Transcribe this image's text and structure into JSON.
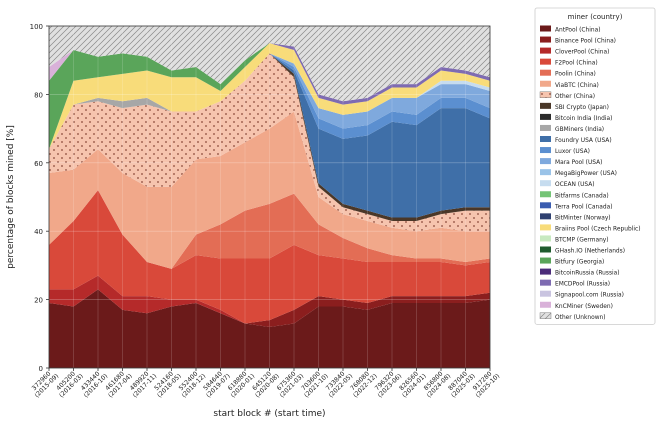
{
  "chart_data": {
    "type": "area",
    "stacking": "percent",
    "title": "",
    "xlabel": "start block # (start time)",
    "ylabel": "percentage of blocks mined [%]",
    "ylim": [
      0,
      100
    ],
    "yticks": [
      0,
      20,
      40,
      60,
      80,
      100
    ],
    "grid": true,
    "legend_placement": "right, outside plot",
    "legend_title": "miner (country)",
    "x_ticks": [
      "372960\n(2015-09)",
      "405200\n(2016-03)",
      "433440\n(2016-10)",
      "461680\n(2017-04)",
      "489920\n(2017-11)",
      "524160\n(2018-05)",
      "552400\n(2018-12)",
      "584640\n(2019-07)",
      "618880\n(2020-01)",
      "645120\n(2020-08)",
      "675360\n(2021-03)",
      "703600\n(2021-10)",
      "733840\n(2022-05)",
      "768080\n(2022-12)",
      "796320\n(2023-06)",
      "826560\n(2024-01)",
      "856800\n(2024-08)",
      "887040\n(2025-03)",
      "917280\n(2025-10)"
    ],
    "x": [
      0,
      1,
      2,
      3,
      4,
      5,
      6,
      7,
      8,
      9,
      10,
      11,
      12,
      13,
      14,
      15,
      16,
      17,
      18
    ],
    "series": [
      {
        "name": "AntPool (China)",
        "color": "#6b1a1a",
        "values": [
          19,
          18,
          23,
          17,
          16,
          18,
          19,
          16,
          13,
          12,
          13,
          18,
          18,
          17,
          19,
          19,
          19,
          19,
          20
        ]
      },
      {
        "name": "Binance Pool (China)",
        "color": "#8b1e1e",
        "values": [
          0,
          0,
          0,
          0,
          0,
          0,
          0,
          0,
          0,
          2,
          4,
          3,
          2,
          2,
          2,
          2,
          2,
          2,
          2
        ]
      },
      {
        "name": "CloverPool (China)",
        "color": "#b52a2a",
        "values": [
          4,
          5,
          4,
          4,
          5,
          2,
          1,
          1,
          0,
          0,
          0,
          0,
          0,
          0,
          0,
          0,
          0,
          0,
          0
        ]
      },
      {
        "name": "F2Pool (China)",
        "color": "#d9493a",
        "values": [
          13,
          20,
          25,
          18,
          10,
          9,
          13,
          15,
          19,
          18,
          19,
          12,
          12,
          12,
          10,
          10,
          10,
          9,
          9
        ]
      },
      {
        "name": "Poolin (China)",
        "color": "#e36d55",
        "values": [
          0,
          0,
          0,
          0,
          0,
          0,
          6,
          10,
          14,
          16,
          15,
          9,
          6,
          4,
          2,
          1,
          1,
          1,
          1
        ]
      },
      {
        "name": "ViaBTC (China)",
        "color": "#f1a88a",
        "values": [
          21,
          15,
          12,
          18,
          22,
          24,
          22,
          20,
          20,
          22,
          24,
          8,
          7,
          8,
          8,
          8,
          9,
          9,
          8
        ]
      },
      {
        "name": "Other (China)",
        "color": "#f6c4ae",
        "values": [
          7,
          19,
          14,
          19,
          24,
          22,
          14,
          16,
          18,
          22,
          10,
          3,
          2,
          2,
          2,
          3,
          4,
          6,
          6
        ]
      },
      {
        "name": "SBI Crypto (Japan)",
        "color": "#4a3728",
        "values": [
          0,
          0,
          0,
          0,
          0,
          0,
          0,
          0,
          0,
          0,
          1,
          1,
          1,
          1,
          1,
          1,
          1,
          1,
          1
        ]
      },
      {
        "name": "Bitcoin India (India)",
        "color": "#2b2b2b",
        "values": [
          0,
          0,
          0,
          0,
          0,
          0,
          0,
          0,
          0,
          0,
          0,
          0,
          0,
          0,
          0,
          0,
          0,
          0,
          0
        ]
      },
      {
        "name": "GBMiners (India)",
        "color": "#a7a7a7",
        "values": [
          0,
          0,
          1,
          2,
          2,
          0,
          0,
          0,
          0,
          0,
          0,
          0,
          0,
          0,
          0,
          0,
          0,
          0,
          0
        ]
      },
      {
        "name": "Foundry USA (USA)",
        "color": "#3f6fa8",
        "values": [
          0,
          0,
          0,
          0,
          0,
          0,
          0,
          0,
          0,
          0,
          1,
          16,
          19,
          22,
          28,
          27,
          30,
          29,
          26
        ]
      },
      {
        "name": "Luxor (USA)",
        "color": "#5b8fd0",
        "values": [
          0,
          0,
          0,
          0,
          0,
          0,
          0,
          0,
          0,
          0,
          1,
          3,
          3,
          3,
          3,
          3,
          3,
          3,
          3
        ]
      },
      {
        "name": "Mara Pool (USA)",
        "color": "#7fa9dd",
        "values": [
          0,
          0,
          0,
          0,
          0,
          0,
          0,
          0,
          0,
          0,
          1,
          3,
          4,
          4,
          4,
          5,
          4,
          4,
          5
        ]
      },
      {
        "name": "MegaBigPower (USA)",
        "color": "#9ac3e8",
        "values": [
          0,
          0,
          0,
          0,
          0,
          0,
          0,
          0,
          0,
          0,
          0,
          0,
          0,
          0,
          0,
          0,
          0,
          0,
          0
        ]
      },
      {
        "name": "OCEAN (USA)",
        "color": "#c6dcef",
        "values": [
          0,
          0,
          0,
          0,
          0,
          0,
          0,
          0,
          0,
          0,
          0,
          0,
          0,
          0,
          0,
          0,
          1,
          1,
          1
        ]
      },
      {
        "name": "Bitfarms (Canada)",
        "color": "#74c476",
        "values": [
          0,
          0,
          0,
          0,
          0,
          0,
          0,
          0,
          0,
          0,
          0,
          0,
          0,
          0,
          0,
          0,
          0,
          0,
          0
        ]
      },
      {
        "name": "Terra Pool (Canada)",
        "color": "#3a5cb0",
        "values": [
          0,
          0,
          0,
          0,
          0,
          0,
          0,
          0,
          0,
          0,
          0,
          0,
          0,
          0,
          0,
          0,
          0,
          0,
          0
        ]
      },
      {
        "name": "BitMinter (Norway)",
        "color": "#2f4070",
        "values": [
          0,
          0,
          0,
          0,
          0,
          0,
          0,
          0,
          0,
          0,
          0,
          0,
          0,
          0,
          0,
          0,
          0,
          0,
          0
        ]
      },
      {
        "name": "Braiins Pool (Czech Republic)",
        "color": "#f8dc7a",
        "values": [
          0,
          7,
          6,
          8,
          8,
          10,
          10,
          3,
          4,
          3,
          4,
          3,
          3,
          3,
          3,
          3,
          3,
          2,
          2
        ]
      },
      {
        "name": "BTCMP (Germany)",
        "color": "#c7e9c0",
        "values": [
          0,
          0,
          0,
          0,
          0,
          0,
          0,
          0,
          0,
          0,
          0,
          0,
          0,
          0,
          0,
          0,
          0,
          0,
          0
        ]
      },
      {
        "name": "GHash.IO (Netherlands)",
        "color": "#1f5c2e",
        "values": [
          0,
          0,
          0,
          0,
          0,
          0,
          0,
          0,
          0,
          0,
          0,
          0,
          0,
          0,
          0,
          0,
          0,
          0,
          0
        ]
      },
      {
        "name": "Bitfury (Georgia)",
        "color": "#5aa55a",
        "values": [
          20,
          9,
          6,
          6,
          4,
          2,
          3,
          2,
          2,
          0,
          0,
          0,
          0,
          0,
          0,
          0,
          0,
          0,
          0
        ]
      },
      {
        "name": "BitcoinRussia (Russia)",
        "color": "#4b2c7a",
        "values": [
          0,
          0,
          0,
          0,
          0,
          0,
          0,
          0,
          0,
          0,
          0,
          0,
          0,
          0,
          0,
          0,
          0,
          0,
          0
        ]
      },
      {
        "name": "EMCDPool (Russia)",
        "color": "#7e6bb1",
        "values": [
          0,
          0,
          0,
          0,
          0,
          0,
          0,
          0,
          0,
          0,
          1,
          1,
          1,
          1,
          1,
          1,
          1,
          1,
          1
        ]
      },
      {
        "name": "Signapool.com (Russia)",
        "color": "#c9c4e0",
        "values": [
          0,
          0,
          0,
          0,
          0,
          0,
          0,
          0,
          0,
          0,
          0,
          0,
          0,
          0,
          0,
          0,
          0,
          0,
          0
        ]
      },
      {
        "name": "KnCMiner (Sweden)",
        "color": "#d9b1d9",
        "values": [
          4,
          0,
          0,
          0,
          0,
          0,
          0,
          0,
          0,
          0,
          0,
          0,
          0,
          0,
          0,
          0,
          0,
          0,
          0
        ]
      },
      {
        "name": "Other (Unknown)",
        "color": "#e0e0e0",
        "values": [
          12,
          7,
          9,
          8,
          9,
          13,
          12,
          17,
          10,
          5,
          6,
          20,
          22,
          21,
          17,
          17,
          12,
          13,
          15
        ]
      }
    ]
  }
}
